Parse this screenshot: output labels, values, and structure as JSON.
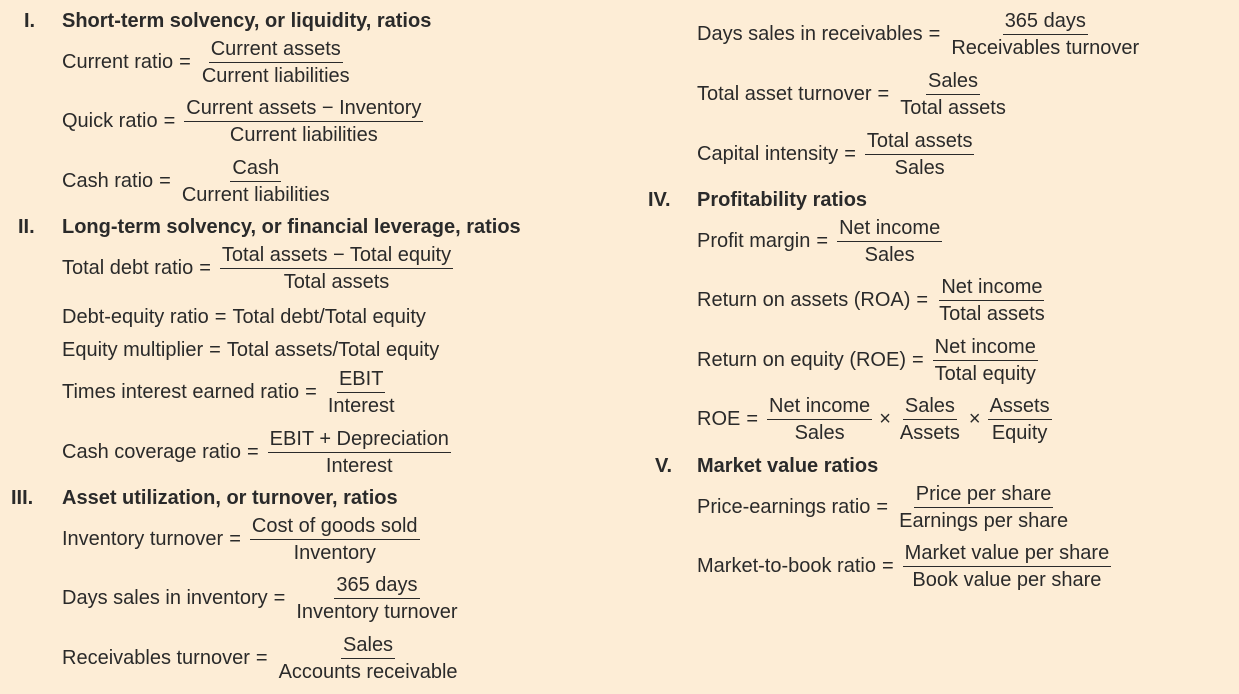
{
  "sections": [
    {
      "num": "I.",
      "title": "Short-term solvency, or liquidity, ratios"
    },
    {
      "num": "II.",
      "title": "Long-term solvency, or financial leverage, ratios"
    },
    {
      "num": "III.",
      "title": "Asset utilization, or turnover, ratios"
    },
    {
      "num": "IV.",
      "title": "Profitability ratios"
    },
    {
      "num": "V.",
      "title": "Market value ratios"
    }
  ],
  "formulas": {
    "current_ratio": {
      "label": "Current ratio",
      "num": "Current assets",
      "den": "Current liabilities"
    },
    "quick_ratio": {
      "label": "Quick ratio",
      "num": "Current assets − Inventory",
      "den": "Current liabilities"
    },
    "cash_ratio": {
      "label": "Cash ratio",
      "num": "Cash",
      "den": "Current liabilities"
    },
    "total_debt_ratio": {
      "label": "Total debt ratio",
      "num": "Total assets − Total equity",
      "den": "Total assets"
    },
    "debt_equity_ratio": {
      "label": "Debt-equity ratio",
      "expr": "Total debt/Total equity"
    },
    "equity_multiplier": {
      "label": "Equity multiplier",
      "expr": "Total assets/Total equity"
    },
    "times_interest_earned": {
      "label": "Times interest earned ratio",
      "num": "EBIT",
      "den": "Interest"
    },
    "cash_coverage": {
      "label": "Cash coverage ratio",
      "num": "EBIT + Depreciation",
      "den": "Interest"
    },
    "inventory_turnover": {
      "label": "Inventory turnover",
      "num": "Cost of goods sold",
      "den": "Inventory"
    },
    "days_sales_inventory": {
      "label": "Days sales in inventory",
      "num": "365 days",
      "den": "Inventory turnover"
    },
    "receivables_turnover": {
      "label": "Receivables turnover",
      "num": "Sales",
      "den": "Accounts receivable"
    },
    "days_sales_receivables": {
      "label": "Days sales in receivables",
      "num": "365 days",
      "den": "Receivables turnover"
    },
    "total_asset_turnover": {
      "label": "Total asset turnover",
      "num": "Sales",
      "den": "Total assets"
    },
    "capital_intensity": {
      "label": "Capital intensity",
      "num": "Total assets",
      "den": "Sales"
    },
    "profit_margin": {
      "label": "Profit margin",
      "num": "Net income",
      "den": "Sales"
    },
    "roa": {
      "label": "Return on assets (ROA)",
      "num": "Net income",
      "den": "Total assets"
    },
    "roe": {
      "label": "Return on equity (ROE)",
      "num": "Net income",
      "den": "Total equity"
    },
    "roe_dupont": {
      "label": "ROE",
      "f1_num": "Net income",
      "f1_den": "Sales",
      "f2_num": "Sales",
      "f2_den": "Assets",
      "f3_num": "Assets",
      "f3_den": "Equity"
    },
    "pe_ratio": {
      "label": "Price-earnings ratio",
      "num": "Price per share",
      "den": "Earnings per share"
    },
    "market_to_book": {
      "label": "Market-to-book ratio",
      "num": "Market value per share",
      "den": "Book value per share"
    }
  },
  "symbols": {
    "equals": "=",
    "times": "×"
  }
}
